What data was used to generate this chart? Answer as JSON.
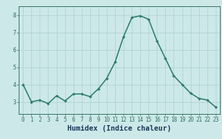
{
  "x": [
    0,
    1,
    2,
    3,
    4,
    5,
    6,
    7,
    8,
    9,
    10,
    11,
    12,
    13,
    14,
    15,
    16,
    17,
    18,
    19,
    20,
    21,
    22,
    23
  ],
  "y": [
    4.0,
    3.0,
    3.1,
    2.9,
    3.35,
    3.05,
    3.45,
    3.45,
    3.3,
    3.75,
    4.35,
    5.3,
    6.75,
    7.85,
    7.95,
    7.75,
    6.5,
    5.5,
    4.5,
    4.0,
    3.5,
    3.2,
    3.1,
    2.7
  ],
  "line_color": "#2e7d6e",
  "marker": "D",
  "marker_size": 2.0,
  "bg_color": "#cce8e8",
  "grid_color": "#aacfcf",
  "xlabel": "Humidex (Indice chaleur)",
  "ylim": [
    2.3,
    8.5
  ],
  "xlim": [
    -0.5,
    23.5
  ],
  "yticks": [
    3,
    4,
    5,
    6,
    7,
    8
  ],
  "xticks": [
    0,
    1,
    2,
    3,
    4,
    5,
    6,
    7,
    8,
    9,
    10,
    11,
    12,
    13,
    14,
    15,
    16,
    17,
    18,
    19,
    20,
    21,
    22,
    23
  ],
  "tick_color": "#2e6e60",
  "tick_labelsize": 5.5,
  "xlabel_fontsize": 7.5,
  "xlabel_color": "#1a3a5c",
  "line_width": 1.2,
  "spine_color": "#2e6e60"
}
